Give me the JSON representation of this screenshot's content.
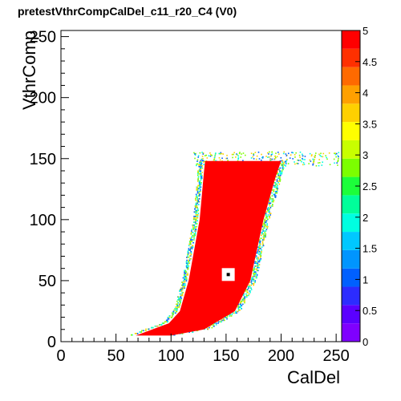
{
  "chart_data": {
    "type": "heatmap",
    "title": "pretestVthrCompCalDel_c11_r20_C4 (V0)",
    "xlabel": "CalDel",
    "ylabel": "VthrComp",
    "xlim": [
      0,
      255
    ],
    "ylim": [
      0,
      255
    ],
    "x_ticks": [
      0,
      50,
      100,
      150,
      200,
      250
    ],
    "y_ticks": [
      0,
      50,
      100,
      150,
      200,
      250
    ],
    "z_range": [
      0,
      5
    ],
    "z_ticks": [
      "0",
      "0.5",
      "1",
      "1.5",
      "2",
      "2.5",
      "3",
      "3.5",
      "4",
      "4.5",
      "5"
    ],
    "grid": false,
    "region": {
      "description_values": "pixel-response region, saturated at z = 5 in the interior",
      "bottom_y": 5,
      "top_y": 148,
      "left_edge": [
        [
          5,
          68
        ],
        [
          15,
          98
        ],
        [
          25,
          108
        ],
        [
          50,
          116
        ],
        [
          100,
          126
        ],
        [
          140,
          130
        ],
        [
          148,
          131
        ]
      ],
      "right_edge": [
        [
          5,
          100
        ],
        [
          10,
          130
        ],
        [
          25,
          158
        ],
        [
          50,
          172
        ],
        [
          100,
          184
        ],
        [
          135,
          195
        ],
        [
          148,
          200
        ]
      ],
      "plateau": {
        "x": [
          200,
          255
        ],
        "y": [
          145,
          155
        ]
      },
      "interior_value": 5,
      "edge_values": [
        2,
        3,
        4,
        1
      ]
    },
    "marker": {
      "x": 152,
      "y": 55
    }
  }
}
